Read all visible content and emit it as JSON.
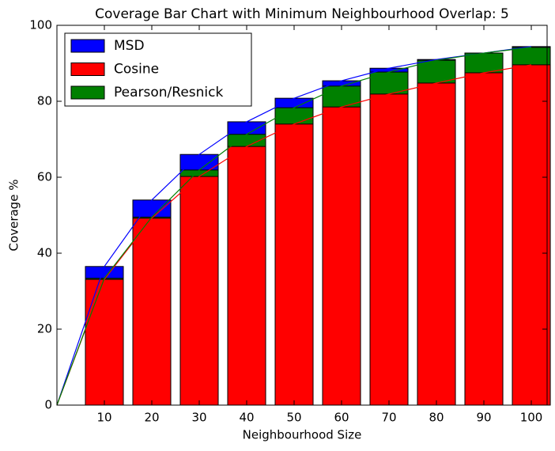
{
  "chart_data": {
    "type": "bar",
    "title": "Coverage Bar Chart with Minimum Neighbourhood Overlap: 5",
    "x_label": "Neighbourhood Size",
    "y_label": "Coverage %",
    "x": [
      0,
      10,
      20,
      30,
      40,
      50,
      60,
      70,
      80,
      90,
      100
    ],
    "series": [
      {
        "name": "MSD",
        "color": "#0000ff",
        "values": [
          0,
          36.5,
          54,
          66,
          74.6,
          80.8,
          85.4,
          88.7,
          91,
          92.7,
          94.4
        ]
      },
      {
        "name": "Cosine",
        "color": "#ff0000",
        "values": [
          0,
          33.1,
          49.2,
          60.2,
          68.1,
          74,
          78.5,
          81.9,
          84.8,
          87.5,
          89.6
        ]
      },
      {
        "name": "Pearson/Resnick",
        "color": "#008000",
        "values": [
          0,
          33.4,
          49.5,
          61.9,
          71.3,
          78.3,
          84,
          87.7,
          90.8,
          92.7,
          94.2
        ]
      }
    ],
    "xlim": [
      0,
      103.33
    ],
    "xticks": [
      10,
      20,
      30,
      40,
      50,
      60,
      70,
      80,
      90,
      100
    ],
    "ylim": [
      0,
      100
    ],
    "yticks": [
      0,
      20,
      40,
      60,
      80,
      100
    ],
    "legend": "upper left"
  }
}
